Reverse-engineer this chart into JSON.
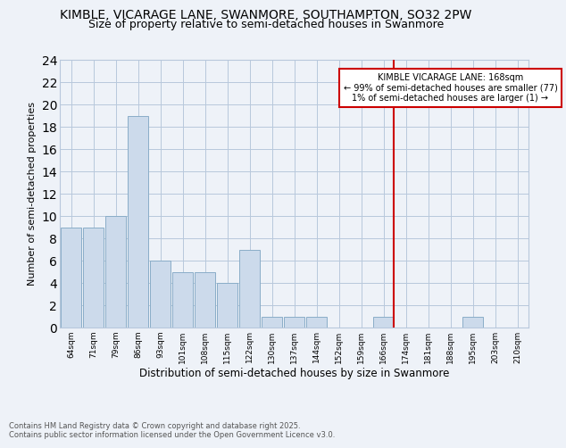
{
  "title": "KIMBLE, VICARAGE LANE, SWANMORE, SOUTHAMPTON, SO32 2PW",
  "subtitle": "Size of property relative to semi-detached houses in Swanmore",
  "xlabel": "Distribution of semi-detached houses by size in Swanmore",
  "ylabel": "Number of semi-detached properties",
  "bar_color": "#ccdaeb",
  "bar_edge_color": "#8aadc8",
  "categories": [
    "64sqm",
    "71sqm",
    "79sqm",
    "86sqm",
    "93sqm",
    "101sqm",
    "108sqm",
    "115sqm",
    "122sqm",
    "130sqm",
    "137sqm",
    "144sqm",
    "152sqm",
    "159sqm",
    "166sqm",
    "174sqm",
    "181sqm",
    "188sqm",
    "195sqm",
    "203sqm",
    "210sqm"
  ],
  "values": [
    9,
    9,
    10,
    19,
    6,
    5,
    5,
    4,
    7,
    1,
    1,
    1,
    0,
    0,
    1,
    0,
    0,
    0,
    1,
    0,
    0
  ],
  "ylim": [
    0,
    24
  ],
  "yticks": [
    0,
    2,
    4,
    6,
    8,
    10,
    12,
    14,
    16,
    18,
    20,
    22,
    24
  ],
  "vline_index": 14,
  "annotation_text": "KIMBLE VICARAGE LANE: 168sqm\n← 99% of semi-detached houses are smaller (77)\n1% of semi-detached houses are larger (1) →",
  "footer_text": "Contains HM Land Registry data © Crown copyright and database right 2025.\nContains public sector information licensed under the Open Government Licence v3.0.",
  "background_color": "#eef2f8",
  "grid_color": "#b8c8dc",
  "title_fontsize": 10,
  "subtitle_fontsize": 9,
  "annotation_box_color": "#ffffff",
  "annotation_box_edge": "#cc0000",
  "vline_color": "#cc0000",
  "footer_color": "#555555"
}
